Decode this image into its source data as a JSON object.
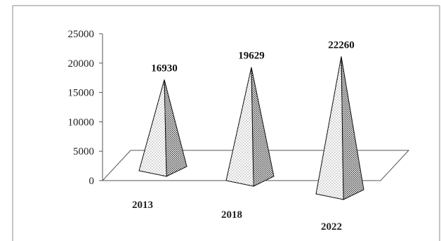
{
  "chart_data": {
    "type": "bar",
    "bar_shape": "pyramid",
    "categories": [
      "2013",
      "2018",
      "2022"
    ],
    "values": [
      16930,
      19629,
      22260
    ],
    "data_labels": [
      "16930",
      "19629",
      "22260"
    ],
    "y_ticks": [
      "0",
      "5000",
      "10000",
      "15000",
      "20000",
      "25000"
    ],
    "ylim": [
      0,
      25000
    ],
    "title": "",
    "xlabel": "",
    "ylabel": "",
    "grid": false,
    "legend": "none",
    "colors": {
      "bar_fill": "#ffffff",
      "bar_dots": "#333333",
      "axis": "#555555"
    }
  }
}
